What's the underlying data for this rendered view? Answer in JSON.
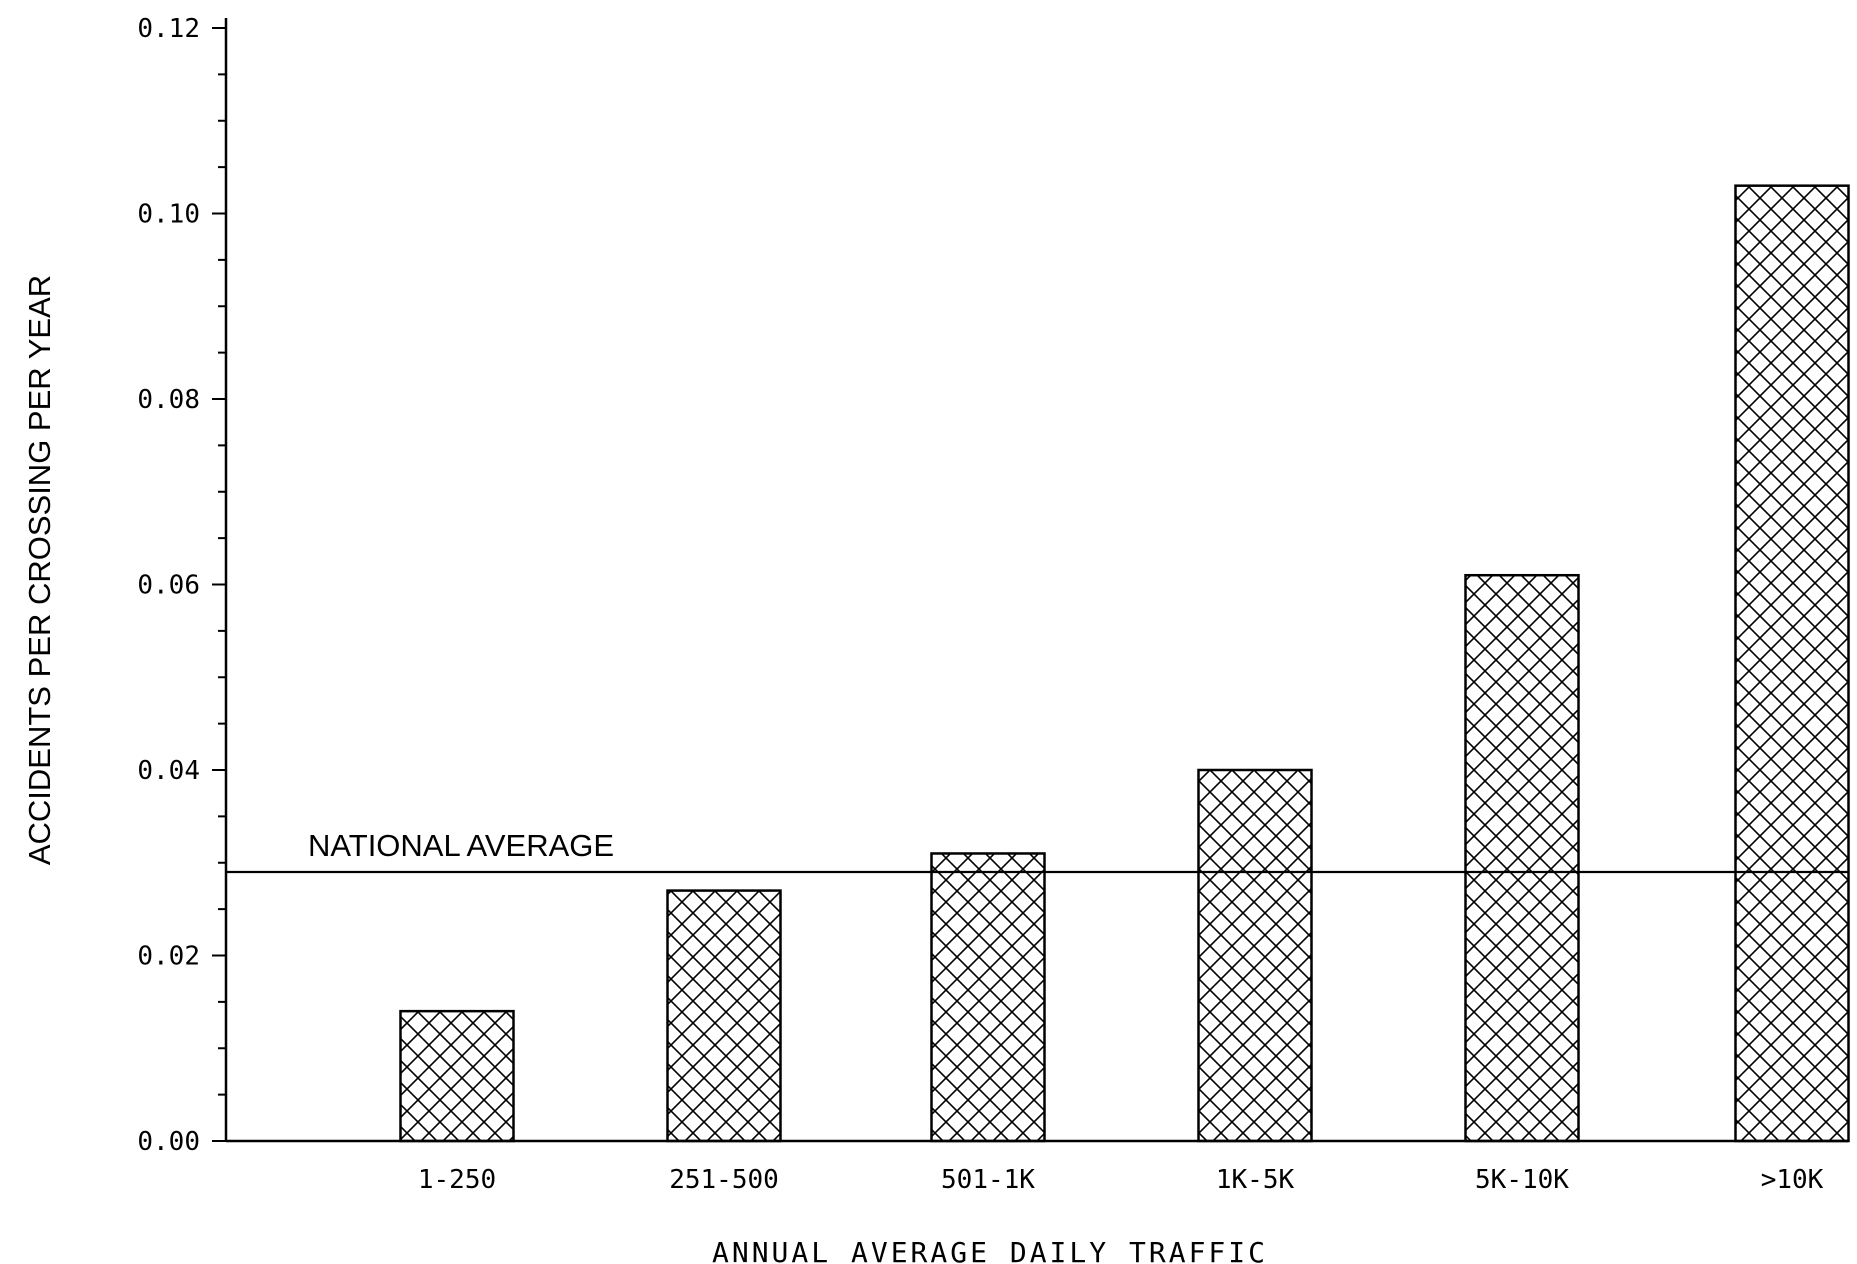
{
  "chart_data": {
    "type": "bar",
    "title": "",
    "xlabel": "ANNUAL AVERAGE DAILY TRAFFIC",
    "ylabel": "ACCIDENTS PER CROSSING PER YEAR",
    "categories": [
      "1-250",
      "251-500",
      "501-1K",
      "1K-5K",
      "5K-10K",
      ">10K"
    ],
    "values": [
      0.014,
      0.027,
      0.031,
      0.04,
      0.061,
      0.103
    ],
    "ylim": [
      0,
      0.12
    ],
    "yticks": [
      "0.00",
      "0.02",
      "0.04",
      "0.06",
      "0.08",
      "0.10",
      "0.12"
    ],
    "grid": false,
    "bar_fill": "crosshatch",
    "reference_line": {
      "label": "NATIONAL AVERAGE",
      "value": 0.029
    }
  }
}
